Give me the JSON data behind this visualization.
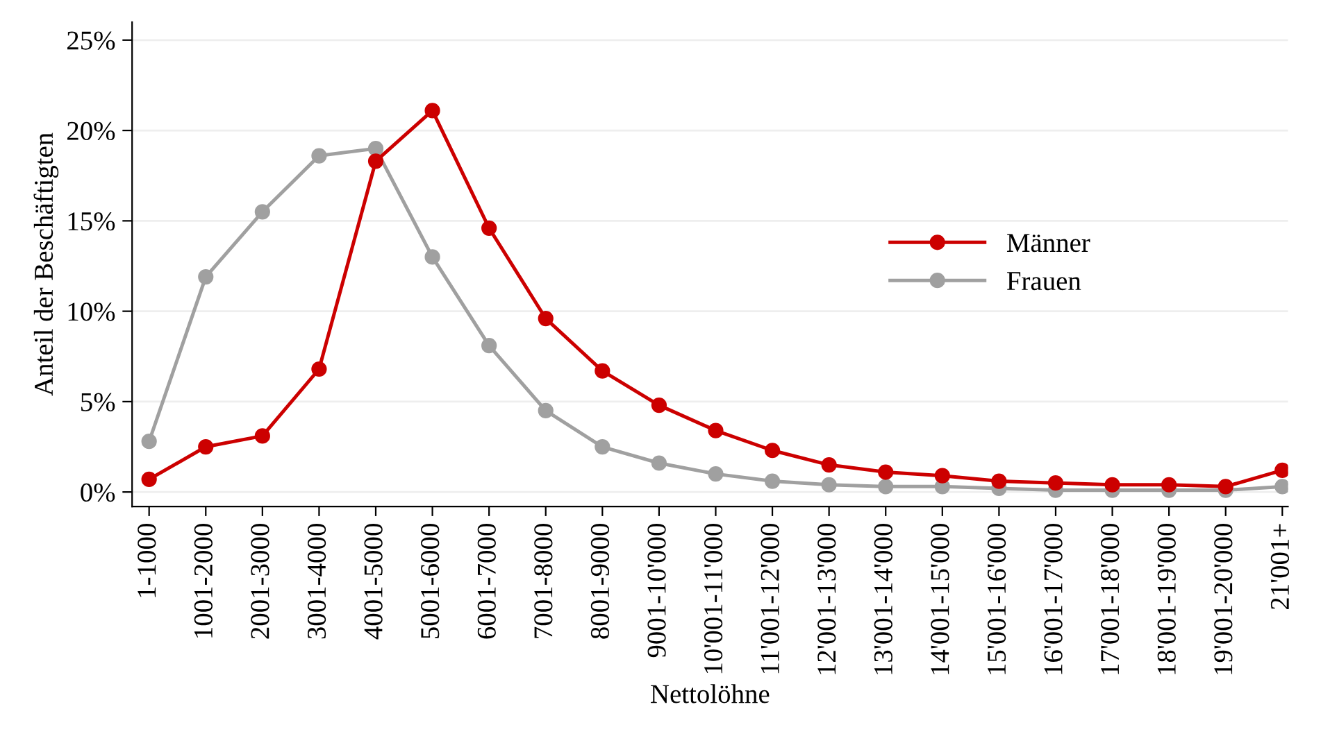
{
  "chart_data": {
    "type": "line",
    "xlabel": "Nettolöhne",
    "ylabel": "Anteil der Beschäftigten",
    "categories": [
      "1-1000",
      "1001-2000",
      "2001-3000",
      "3001-4000",
      "4001-5000",
      "5001-6000",
      "6001-7000",
      "7001-8000",
      "8001-9000",
      "9001-10'000",
      "10'001-11'000",
      "11'001-12'000",
      "12'001-13'000",
      "13'001-14'000",
      "14'001-15'000",
      "15'001-16'000",
      "16'001-17'000",
      "17'001-18'000",
      "18'001-19'000",
      "19'001-20'000",
      "21'001+"
    ],
    "series": [
      {
        "name": "Männer",
        "color": "#cc0000",
        "values": [
          0.7,
          2.5,
          3.1,
          6.8,
          18.3,
          21.1,
          14.6,
          9.6,
          6.7,
          4.8,
          3.4,
          2.3,
          1.5,
          1.1,
          0.9,
          0.6,
          0.5,
          0.4,
          0.4,
          0.3,
          1.2
        ]
      },
      {
        "name": "Frauen",
        "color": "#a0a0a0",
        "values": [
          2.8,
          11.9,
          15.5,
          18.6,
          19.0,
          13.0,
          8.1,
          4.5,
          2.5,
          1.6,
          1.0,
          0.6,
          0.4,
          0.3,
          0.3,
          0.2,
          0.1,
          0.1,
          0.1,
          0.1,
          0.3
        ]
      }
    ],
    "ylim": [
      -0.8,
      26
    ],
    "yticks": [
      {
        "value": 0,
        "label": "0%"
      },
      {
        "value": 5,
        "label": "5%"
      },
      {
        "value": 10,
        "label": "10%"
      },
      {
        "value": 15,
        "label": "15%"
      },
      {
        "value": 20,
        "label": "20%"
      },
      {
        "value": 25,
        "label": "25%"
      }
    ],
    "grid": "y",
    "legend": "right",
    "marker": "circle",
    "line_style": "solid"
  }
}
